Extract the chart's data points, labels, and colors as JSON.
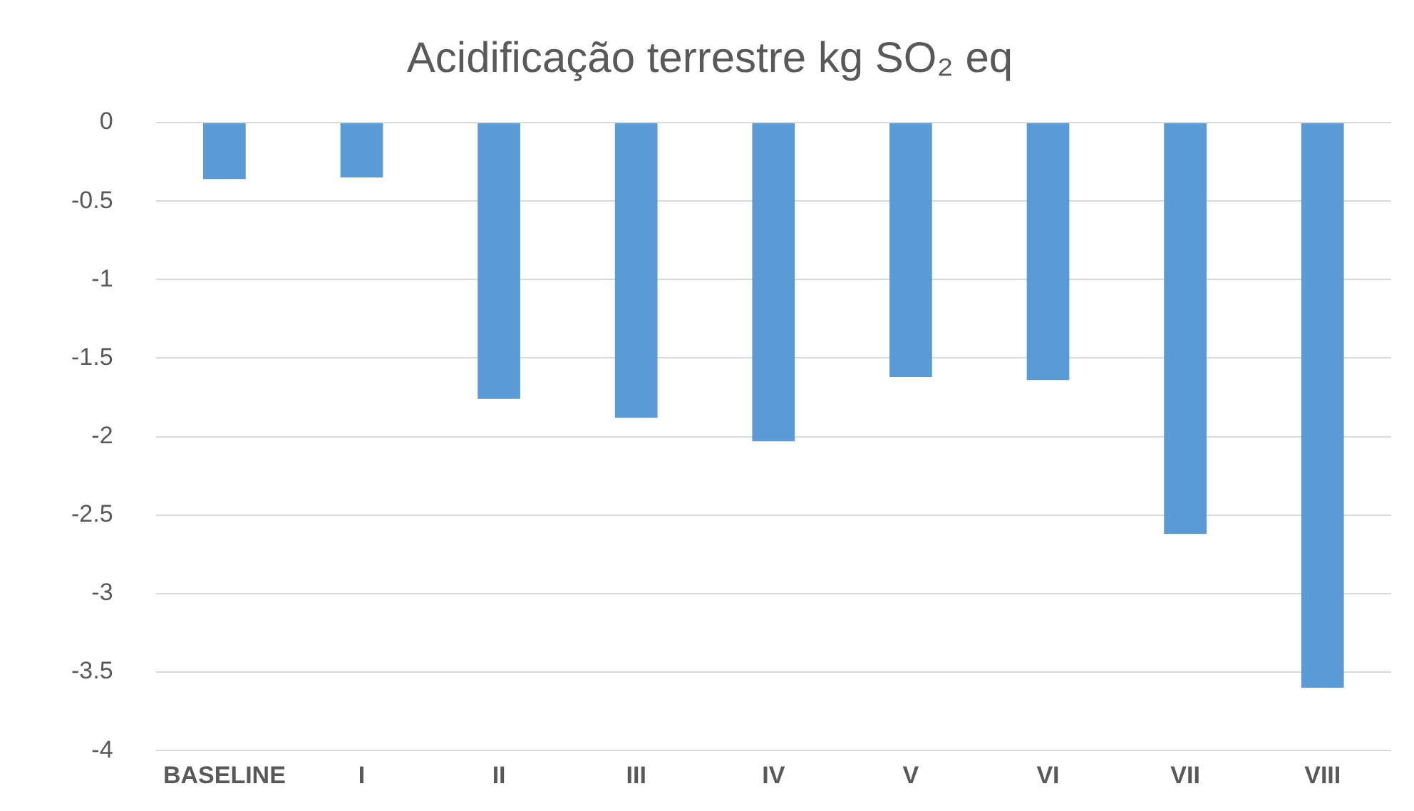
{
  "chart_data": {
    "type": "bar",
    "title": "Acidificação terrestre kg SO₂ eq",
    "categories": [
      "BASELINE",
      "I",
      "II",
      "III",
      "IV",
      "V",
      "VI",
      "VII",
      "VIII"
    ],
    "values": [
      -0.36,
      -0.35,
      -1.76,
      -1.88,
      -2.03,
      -1.62,
      -1.64,
      -2.62,
      -3.6
    ],
    "color": "#5b9bd5",
    "ylim": [
      -4,
      0
    ],
    "yticks": [
      0,
      -0.5,
      -1,
      -1.5,
      -2,
      -2.5,
      -3,
      -3.5,
      -4
    ],
    "grid": "y"
  }
}
